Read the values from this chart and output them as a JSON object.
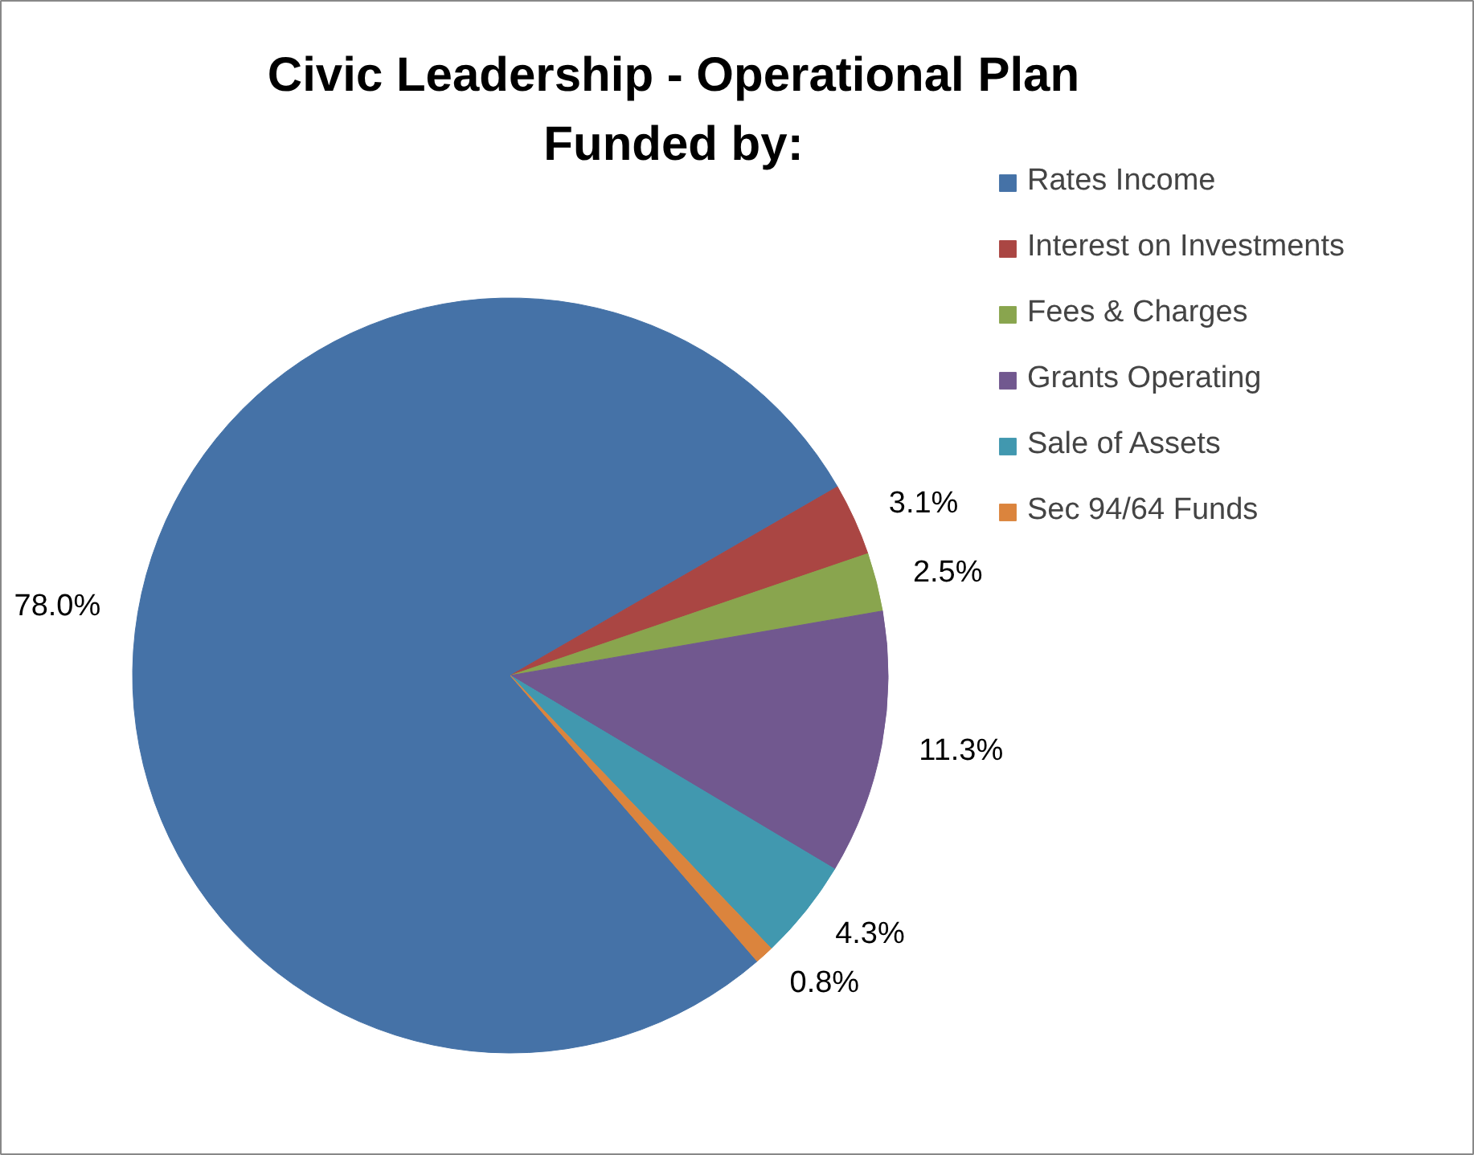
{
  "chart_data": {
    "type": "pie",
    "title": "Civic Leadership - Operational Plan\nFunded by:",
    "categories": [
      "Rates Income",
      "Interest on Investments",
      "Fees & Charges",
      "Grants Operating",
      "Sale of Assets",
      "Sec 94/64 Funds"
    ],
    "values": [
      78.0,
      3.1,
      2.5,
      11.3,
      4.3,
      0.8
    ],
    "colors": [
      "#4572a7",
      "#aa4643",
      "#89a54e",
      "#71588f",
      "#4198af",
      "#db843d"
    ],
    "value_labels": [
      "78.0%",
      "3.1%",
      "2.5%",
      "11.3%",
      "4.3%",
      "0.8%"
    ],
    "legend": "right"
  }
}
